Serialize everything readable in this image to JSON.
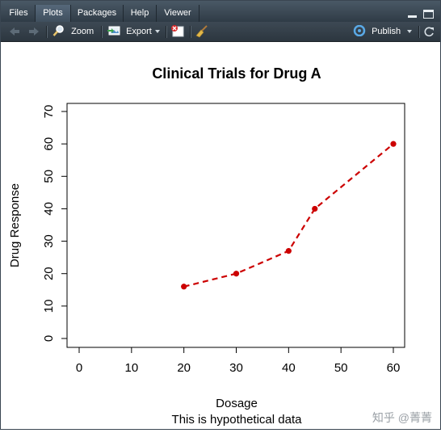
{
  "tabs": [
    {
      "label": "Files",
      "active": false
    },
    {
      "label": "Plots",
      "active": true
    },
    {
      "label": "Packages",
      "active": false
    },
    {
      "label": "Help",
      "active": false
    },
    {
      "label": "Viewer",
      "active": false
    }
  ],
  "toolbar": {
    "zoom_label": "Zoom",
    "export_label": "Export",
    "publish_label": "Publish"
  },
  "icons": {
    "back": "arrow-left-icon",
    "forward": "arrow-right-icon",
    "zoom": "magnifier-icon",
    "export": "export-image-icon",
    "remove": "remove-plot-icon",
    "clear": "broom-icon",
    "publish": "publish-icon"
  },
  "colors": {
    "series": "#cc0000",
    "toolbar_bg": "#2f3b46"
  },
  "chart_data": {
    "type": "line",
    "title": "Clinical Trials for Drug A",
    "xlabel": "Dosage",
    "ylabel": "Drug Response",
    "subtitle": "This is hypothetical data",
    "xlim": [
      0,
      60
    ],
    "ylim": [
      0,
      70
    ],
    "xticks": [
      0,
      10,
      20,
      30,
      40,
      50,
      60
    ],
    "yticks": [
      0,
      10,
      20,
      30,
      40,
      50,
      60,
      70
    ],
    "line_style": "dashed",
    "marker": "filled-circle",
    "grid": false,
    "series": [
      {
        "x": [
          20,
          30,
          40,
          45,
          60
        ],
        "y": [
          16,
          20,
          27,
          40,
          60
        ]
      }
    ]
  },
  "watermark": "知乎 @菁菁"
}
